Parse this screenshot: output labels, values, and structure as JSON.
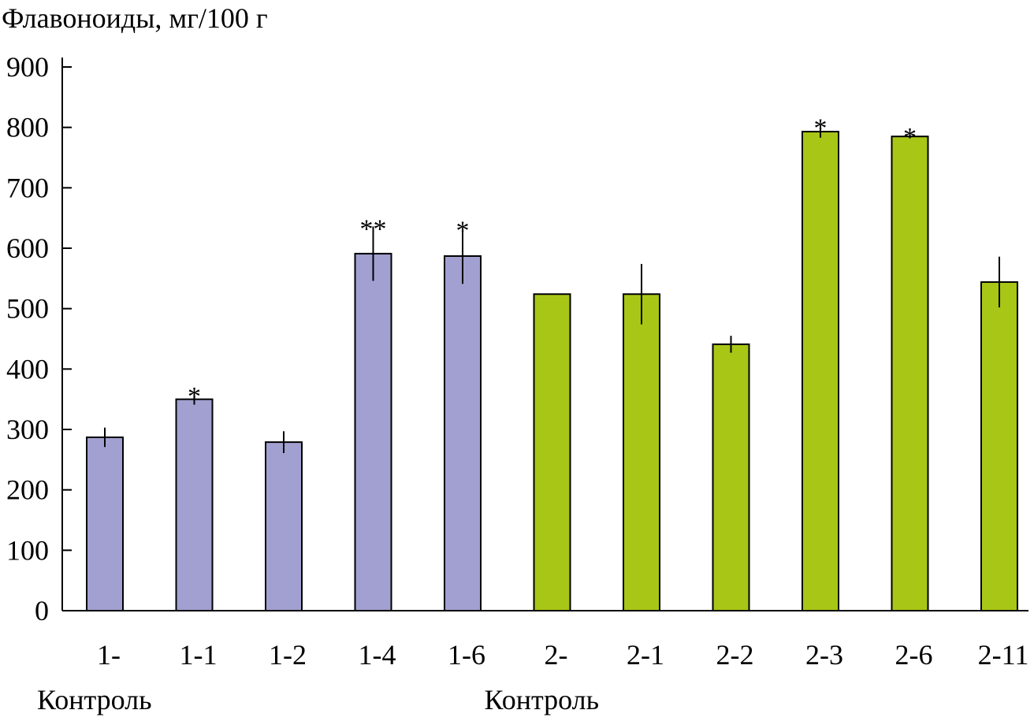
{
  "chart_data": {
    "type": "bar",
    "ylabel": "Флавоноиды, мг/100 г",
    "ylim": [
      0,
      900
    ],
    "yticks": [
      0,
      100,
      200,
      300,
      400,
      500,
      600,
      700,
      800,
      900
    ],
    "categories": [
      "1-",
      "1-1",
      "1-2",
      "1-4",
      "1-6",
      "2-",
      "2-1",
      "2-2",
      "2-3",
      "2-6",
      "2-11"
    ],
    "sub_labels": [
      "Контроль",
      "",
      "",
      "",
      "",
      "Контроль",
      "",
      "",
      "",
      "",
      ""
    ],
    "values": [
      287,
      350,
      279,
      591,
      587,
      524,
      524,
      441,
      793,
      785,
      544
    ],
    "errors": [
      16,
      9,
      18,
      45,
      46,
      0,
      50,
      14,
      10,
      3,
      42
    ],
    "annotations": [
      "",
      "*",
      "",
      "**",
      "*",
      "",
      "",
      "",
      "*",
      "*",
      ""
    ],
    "groups": [
      "1",
      "1",
      "1",
      "1",
      "1",
      "2",
      "2",
      "2",
      "2",
      "2",
      "2"
    ],
    "colors": {
      "1": "#a2a0d0",
      "2": "#a8c616"
    },
    "grid": false
  }
}
